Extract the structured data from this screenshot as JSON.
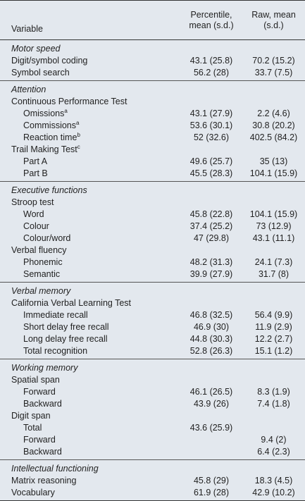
{
  "header": {
    "variable": "Variable",
    "percentile": "Percentile, mean (s.d.)",
    "raw": "Raw, mean (s.d.)"
  },
  "sections": [
    {
      "title": "Motor speed",
      "rows": [
        {
          "label": "Digit/symbol coding",
          "percentile": "43.1 (25.8)",
          "raw": "70.2 (15.2)"
        },
        {
          "label": "Symbol search",
          "percentile": "56.2 (28)",
          "raw": "33.7 (7.5)"
        }
      ]
    },
    {
      "title": "Attention",
      "rows": [
        {
          "label": "Continuous Performance Test",
          "items": [
            {
              "label": "Omissions",
              "note": "a",
              "percentile": "43.1 (27.9)",
              "raw": "2.2 (4.6)"
            },
            {
              "label": "Commissions",
              "note": "a",
              "percentile": "53.6 (30.1)",
              "raw": "30.8 (20.2)"
            },
            {
              "label": "Reaction time",
              "note": "b",
              "percentile": "52 (32.6)",
              "raw": "402.5 (84.2)"
            }
          ]
        },
        {
          "label": "Trail Making Test",
          "note": "c",
          "items": [
            {
              "label": "Part A",
              "percentile": "49.6 (25.7)",
              "raw": "35 (13)"
            },
            {
              "label": "Part B",
              "percentile": "45.5 (28.3)",
              "raw": "104.1 (15.9)"
            }
          ]
        }
      ]
    },
    {
      "title": "Executive functions",
      "rows": [
        {
          "label": "Stroop test",
          "items": [
            {
              "label": "Word",
              "percentile": "45.8 (22.8)",
              "raw": "104.1 (15.9)"
            },
            {
              "label": "Colour",
              "percentile": "37.4 (25.2)",
              "raw": "73 (12.9)"
            },
            {
              "label": "Colour/word",
              "percentile": "47 (29.8)",
              "raw": "43.1 (11.1)"
            }
          ]
        },
        {
          "label": "Verbal fluency",
          "items": [
            {
              "label": "Phonemic",
              "percentile": "48.2 (31.3)",
              "raw": "24.1 (7.3)"
            },
            {
              "label": "Semantic",
              "percentile": "39.9 (27.9)",
              "raw": "31.7 (8)"
            }
          ]
        }
      ]
    },
    {
      "title": "Verbal memory",
      "rows": [
        {
          "label": "California Verbal Learning Test",
          "items": [
            {
              "label": "Immediate recall",
              "percentile": "46.8 (32.5)",
              "raw": "56.4 (9.9)"
            },
            {
              "label": "Short delay free recall",
              "percentile": "46.9 (30)",
              "raw": "11.9 (2.9)"
            },
            {
              "label": "Long delay free recall",
              "percentile": "44.8 (30.3)",
              "raw": "12.2 (2.7)"
            },
            {
              "label": "Total recognition",
              "percentile": "52.8 (26.3)",
              "raw": "15.1 (1.2)"
            }
          ]
        }
      ]
    },
    {
      "title": "Working memory",
      "rows": [
        {
          "label": "Spatial span",
          "items": [
            {
              "label": "Forward",
              "percentile": "46.1 (26.5)",
              "raw": "8.3 (1.9)"
            },
            {
              "label": "Backward",
              "percentile": "43.9 (26)",
              "raw": "7.4 (1.8)"
            }
          ]
        },
        {
          "label": "Digit span",
          "items": [
            {
              "label": "Total",
              "percentile": "43.6 (25.9)"
            },
            {
              "label": "Forward",
              "raw": "9.4 (2)"
            },
            {
              "label": "Backward",
              "raw": "6.4 (2.3)"
            }
          ]
        }
      ]
    },
    {
      "title": "Intellectual functioning",
      "rows": [
        {
          "label": "Matrix reasoning",
          "percentile": "45.8 (29)",
          "raw": "18.3 (4.5)"
        },
        {
          "label": "Vocabulary",
          "percentile": "61.9 (28)",
          "raw": "42.9 (10.2)"
        }
      ]
    }
  ]
}
